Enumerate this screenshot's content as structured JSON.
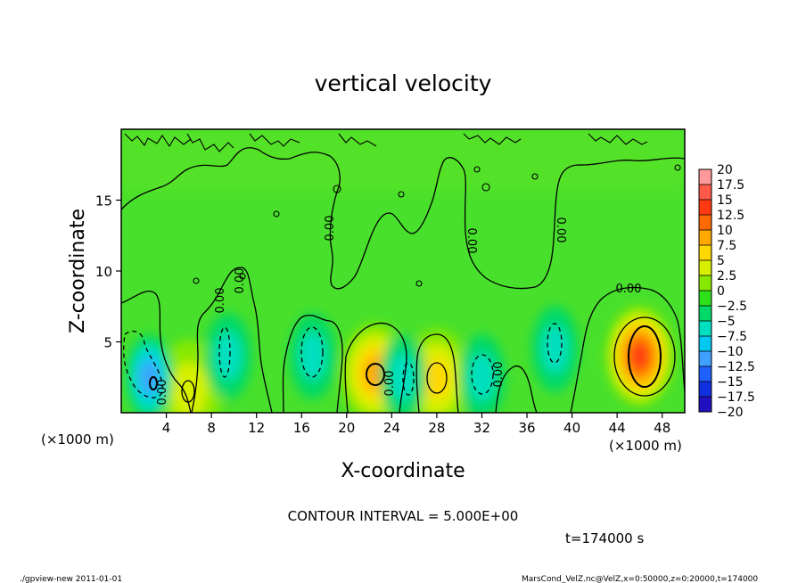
{
  "chart_data": {
    "type": "heatmap",
    "title": "vertical velocity",
    "xlabel": "X-coordinate",
    "ylabel": "Z-coordinate",
    "x_unit": "(×1000 m)",
    "y_unit": "(×1000 m)",
    "xlim": [
      0,
      50
    ],
    "ylim": [
      0,
      20
    ],
    "x_ticks": [
      4,
      8,
      12,
      16,
      20,
      24,
      28,
      32,
      36,
      40,
      44,
      48
    ],
    "y_ticks": [
      5,
      10,
      15
    ],
    "contour_interval_text": "CONTOUR INTERVAL = 5.000E+00",
    "time_text": "t=174000 s",
    "contour_labels": [
      "0.00",
      "0.00",
      "0.00",
      "0.00",
      "0.00",
      "0.00",
      "0.00",
      "0.00",
      "0.00"
    ],
    "colorbar": {
      "levels": [
        "20",
        "17.5",
        "15",
        "12.5",
        "10",
        "7.5",
        "5",
        "2.5",
        "0",
        "−2.5",
        "−5",
        "−7.5",
        "−10",
        "−12.5",
        "−15",
        "−17.5",
        "−20"
      ],
      "colors": [
        "#ff9a9a",
        "#ff5a4a",
        "#ff3a10",
        "#ff6a00",
        "#ffa800",
        "#ffd800",
        "#d8f000",
        "#88e800",
        "#2ee01a",
        "#00d868",
        "#00e0c0",
        "#00c8f0",
        "#40a0ff",
        "#2060ff",
        "#1030e0",
        "#2010c0",
        "#6a10c8"
      ]
    },
    "features": [
      {
        "kind": "updraft",
        "x": 46,
        "z": 4,
        "peak": 15
      },
      {
        "kind": "updraft",
        "x": 22.5,
        "z": 2.8,
        "peak": 8
      },
      {
        "kind": "updraft",
        "x": 28,
        "z": 2.4,
        "peak": 6
      },
      {
        "kind": "updraft",
        "x": 6,
        "z": 1.6,
        "peak": 5
      },
      {
        "kind": "downdraft",
        "x": 2.5,
        "z": 2.5,
        "peak": -8
      },
      {
        "kind": "downdraft",
        "x": 9.5,
        "z": 4,
        "peak": -5
      },
      {
        "kind": "downdraft",
        "x": 17,
        "z": 4,
        "peak": -5
      },
      {
        "kind": "downdraft",
        "x": 25,
        "z": 2.5,
        "peak": -5
      },
      {
        "kind": "downdraft",
        "x": 32,
        "z": 2.5,
        "peak": -5
      },
      {
        "kind": "downdraft",
        "x": 38.5,
        "z": 4.5,
        "peak": -5
      }
    ]
  },
  "footer": {
    "left": "./gpview-new   2011-01-01",
    "right": "MarsCond_VelZ.nc@VelZ,x=0:50000,z=0:20000,t=174000"
  }
}
